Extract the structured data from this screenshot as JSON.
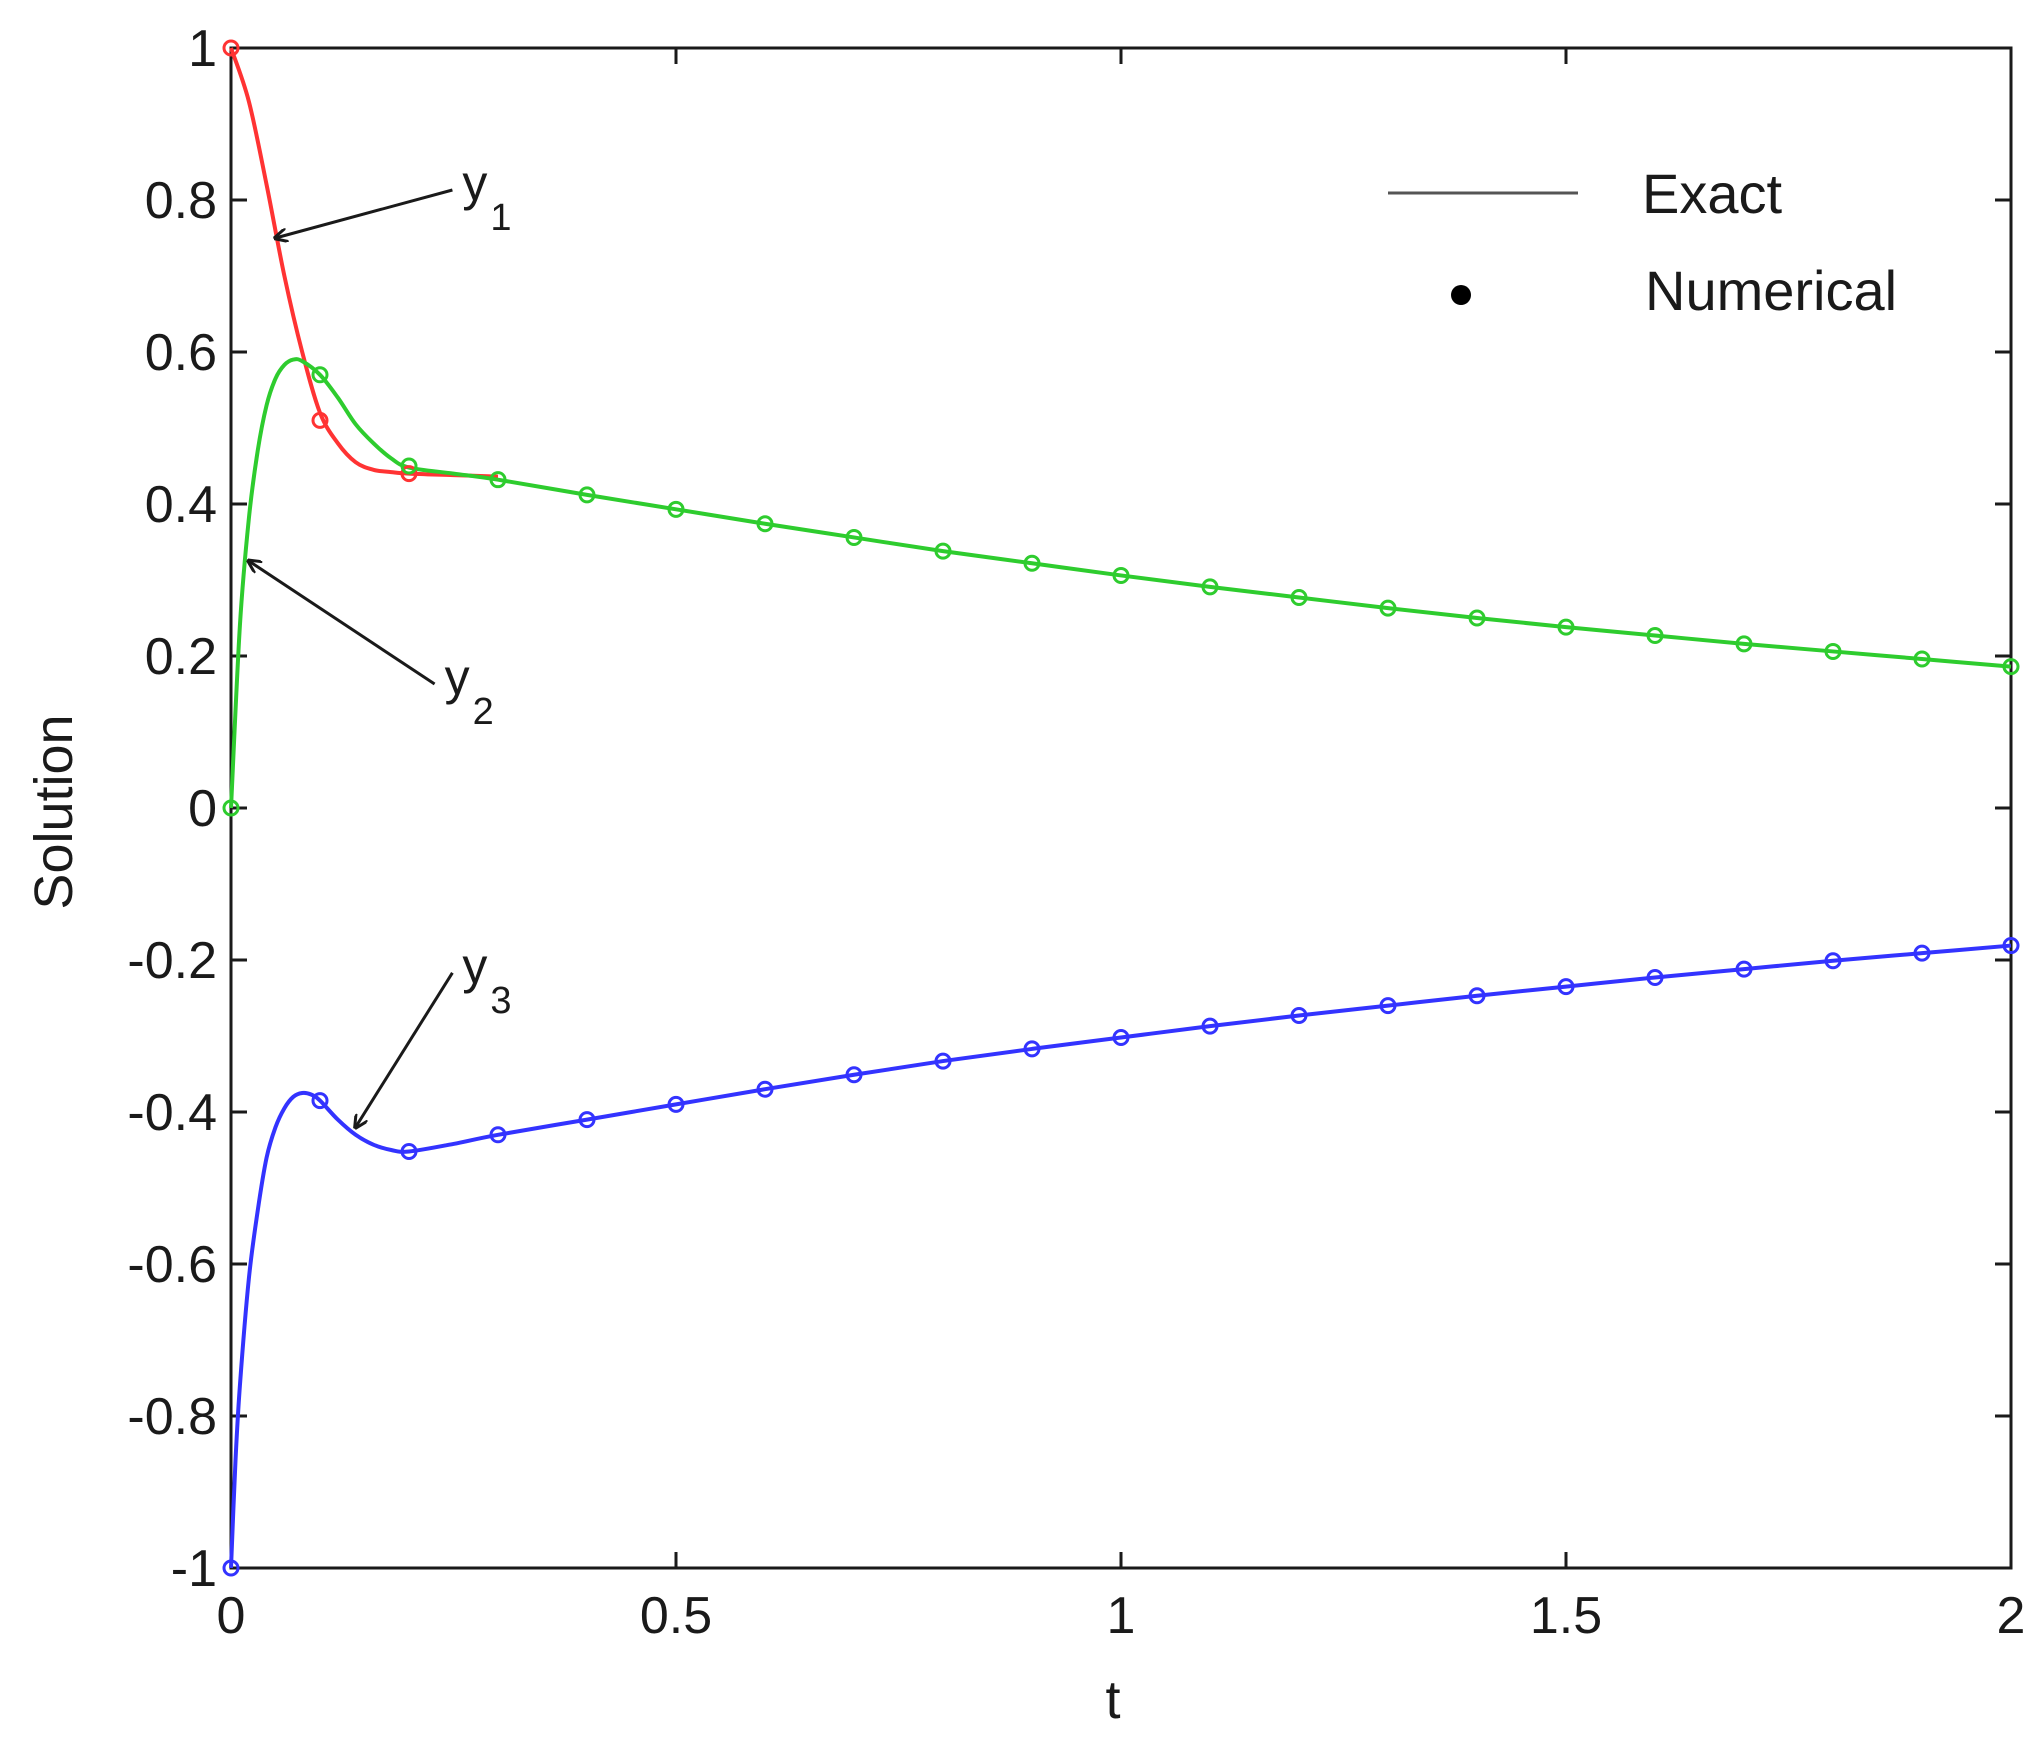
{
  "chart_data": {
    "type": "line",
    "title": "",
    "xlabel": "t",
    "ylabel": "Solution",
    "xlim": [
      0,
      2
    ],
    "ylim": [
      -1,
      1
    ],
    "xticks": [
      "0",
      "0.5",
      "1",
      "1.5",
      "2"
    ],
    "yticks": [
      "-1",
      "-0.8",
      "-0.6",
      "-0.4",
      "-0.2",
      "0",
      "0.2",
      "0.4",
      "0.6",
      "0.8",
      "1"
    ],
    "grid": false,
    "legend": {
      "placement": "top-right",
      "entries": [
        {
          "label": "Exact",
          "marker": "line",
          "color": "#555555"
        },
        {
          "label": "Numerical",
          "marker": "dot",
          "color": "#000000"
        }
      ]
    },
    "series": [
      {
        "name": "y1",
        "color": "#ff3333",
        "exact": {
          "x": [
            0,
            0.02,
            0.04,
            0.06,
            0.08,
            0.1,
            0.12,
            0.14,
            0.16,
            0.18,
            0.2,
            0.25,
            0.3
          ],
          "y": [
            1.0,
            0.93,
            0.82,
            0.7,
            0.6,
            0.52,
            0.48,
            0.455,
            0.445,
            0.442,
            0.44,
            0.438,
            0.436
          ]
        },
        "numerical": {
          "x": [
            0,
            0.1,
            0.2
          ],
          "y": [
            1.0,
            0.51,
            0.44
          ]
        }
      },
      {
        "name": "y2",
        "color": "#2ecc2e",
        "exact": {
          "x": [
            0,
            0.01,
            0.02,
            0.03,
            0.04,
            0.05,
            0.06,
            0.07,
            0.08,
            0.1,
            0.12,
            0.14,
            0.16,
            0.18,
            0.2,
            0.25,
            0.3,
            0.4,
            0.5,
            0.6,
            0.7,
            0.8,
            0.9,
            1.0,
            1.1,
            1.2,
            1.3,
            1.4,
            1.5,
            1.6,
            1.7,
            1.8,
            1.9,
            2.0
          ],
          "y": [
            0,
            0.24,
            0.38,
            0.47,
            0.53,
            0.565,
            0.583,
            0.59,
            0.588,
            0.57,
            0.54,
            0.505,
            0.48,
            0.46,
            0.448,
            0.44,
            0.432,
            0.412,
            0.393,
            0.374,
            0.356,
            0.338,
            0.322,
            0.306,
            0.291,
            0.277,
            0.263,
            0.25,
            0.238,
            0.227,
            0.216,
            0.206,
            0.196,
            0.186
          ]
        },
        "numerical": {
          "x": [
            0,
            0.1,
            0.2,
            0.3,
            0.4,
            0.5,
            0.6,
            0.7,
            0.8,
            0.9,
            1.0,
            1.1,
            1.2,
            1.3,
            1.4,
            1.5,
            1.6,
            1.7,
            1.8,
            1.9,
            2.0
          ],
          "y": [
            0,
            0.57,
            0.45,
            0.432,
            0.412,
            0.393,
            0.374,
            0.356,
            0.338,
            0.322,
            0.306,
            0.291,
            0.277,
            0.263,
            0.25,
            0.238,
            0.227,
            0.216,
            0.206,
            0.196,
            0.186
          ]
        }
      },
      {
        "name": "y3",
        "color": "#3333ff",
        "exact": {
          "x": [
            0,
            0.005,
            0.01,
            0.02,
            0.03,
            0.04,
            0.05,
            0.06,
            0.07,
            0.08,
            0.09,
            0.1,
            0.12,
            0.14,
            0.16,
            0.18,
            0.2,
            0.25,
            0.3,
            0.4,
            0.5,
            0.6,
            0.7,
            0.8,
            0.9,
            1.0,
            1.1,
            1.2,
            1.3,
            1.4,
            1.5,
            1.6,
            1.7,
            1.8,
            1.9,
            2.0
          ],
          "y": [
            -1.0,
            -0.86,
            -0.76,
            -0.62,
            -0.53,
            -0.46,
            -0.42,
            -0.395,
            -0.38,
            -0.375,
            -0.377,
            -0.385,
            -0.41,
            -0.43,
            -0.443,
            -0.45,
            -0.452,
            -0.442,
            -0.43,
            -0.41,
            -0.39,
            -0.37,
            -0.351,
            -0.333,
            -0.317,
            -0.302,
            -0.287,
            -0.273,
            -0.26,
            -0.247,
            -0.235,
            -0.223,
            -0.212,
            -0.201,
            -0.191,
            -0.181
          ]
        },
        "numerical": {
          "x": [
            0,
            0.1,
            0.2,
            0.3,
            0.4,
            0.5,
            0.6,
            0.7,
            0.8,
            0.9,
            1.0,
            1.1,
            1.2,
            1.3,
            1.4,
            1.5,
            1.6,
            1.7,
            1.8,
            1.9,
            2.0
          ],
          "y": [
            -1.0,
            -0.385,
            -0.452,
            -0.43,
            -0.41,
            -0.39,
            -0.37,
            -0.351,
            -0.333,
            -0.317,
            -0.302,
            -0.287,
            -0.273,
            -0.26,
            -0.247,
            -0.235,
            -0.223,
            -0.212,
            -0.201,
            -0.191,
            -0.181
          ]
        }
      }
    ],
    "annotations": [
      {
        "label": "y",
        "subscript": "1",
        "text_at": [
          0.26,
          0.8
        ],
        "arrow_to": [
          0.05,
          0.75
        ]
      },
      {
        "label": "y",
        "subscript": "2",
        "text_at": [
          0.24,
          0.15
        ],
        "arrow_to": [
          0.02,
          0.325
        ]
      },
      {
        "label": "y",
        "subscript": "3",
        "text_at": [
          0.26,
          -0.23
        ],
        "arrow_to": [
          0.14,
          -0.42
        ]
      }
    ]
  }
}
